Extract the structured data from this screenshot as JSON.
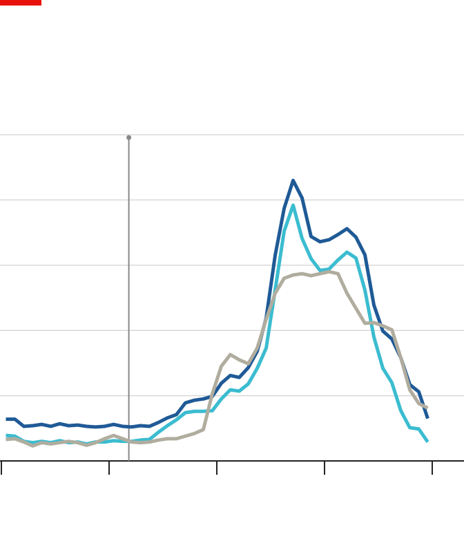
{
  "chart_data": {
    "type": "line",
    "x": [
      0.5,
      1.5,
      2.5,
      3.5,
      4.5,
      5.5,
      6.5,
      7.5,
      8.5,
      9.5,
      10.5,
      11.5,
      12.5,
      13.5,
      14.5,
      15.5,
      16.5,
      17.5,
      18.5,
      19.5,
      20.5,
      21.5,
      22.5,
      23.5,
      24.5,
      25.5,
      26.5,
      27.5,
      28.5,
      29.5,
      30.5,
      31.5,
      32.5,
      33.5,
      34.5,
      35.5,
      36.5,
      37.5,
      38.5,
      39.5,
      40.5,
      41.5,
      42.5,
      43.5,
      44.5,
      45.5,
      46.5,
      47.5
    ],
    "series": [
      {
        "color": "#1f5a96",
        "values": [
          0.64,
          0.64,
          0.53,
          0.54,
          0.56,
          0.53,
          0.57,
          0.54,
          0.55,
          0.53,
          0.52,
          0.53,
          0.56,
          0.53,
          0.52,
          0.54,
          0.53,
          0.59,
          0.66,
          0.71,
          0.89,
          0.93,
          0.95,
          0.99,
          1.19,
          1.31,
          1.28,
          1.43,
          1.68,
          2.19,
          3.15,
          3.87,
          4.3,
          4.03,
          3.44,
          3.36,
          3.39,
          3.47,
          3.56,
          3.43,
          3.16,
          2.39,
          1.99,
          1.87,
          1.58,
          1.17,
          1.06,
          0.65
        ]
      },
      {
        "color": "#3bbcd0",
        "values": [
          0.39,
          0.38,
          0.3,
          0.28,
          0.3,
          0.28,
          0.31,
          0.28,
          0.29,
          0.26,
          0.29,
          0.29,
          0.31,
          0.3,
          0.3,
          0.32,
          0.33,
          0.44,
          0.54,
          0.63,
          0.74,
          0.76,
          0.76,
          0.77,
          0.95,
          1.09,
          1.07,
          1.18,
          1.42,
          1.73,
          2.62,
          3.52,
          3.92,
          3.41,
          3.1,
          2.92,
          2.94,
          3.08,
          3.2,
          3.11,
          2.62,
          1.9,
          1.42,
          1.2,
          0.77,
          0.51,
          0.49,
          0.29
        ]
      },
      {
        "color": "#b0ad9f",
        "values": [
          0.33,
          0.34,
          0.29,
          0.23,
          0.28,
          0.26,
          0.28,
          0.3,
          0.28,
          0.24,
          0.28,
          0.34,
          0.39,
          0.34,
          0.29,
          0.28,
          0.29,
          0.32,
          0.34,
          0.34,
          0.38,
          0.42,
          0.48,
          1.03,
          1.45,
          1.63,
          1.55,
          1.49,
          1.73,
          2.17,
          2.57,
          2.8,
          2.85,
          2.87,
          2.84,
          2.87,
          2.9,
          2.87,
          2.57,
          2.34,
          2.11,
          2.12,
          2.07,
          2.01,
          1.58,
          1.09,
          0.88,
          0.81
        ]
      }
    ],
    "xlim": [
      0,
      51.5
    ],
    "xticks": [
      0,
      12,
      24,
      36,
      48
    ],
    "ylim": [
      0,
      5
    ],
    "yticks": [
      1,
      2,
      3,
      4,
      5
    ],
    "grid": true,
    "vline_x": 14.2
  }
}
